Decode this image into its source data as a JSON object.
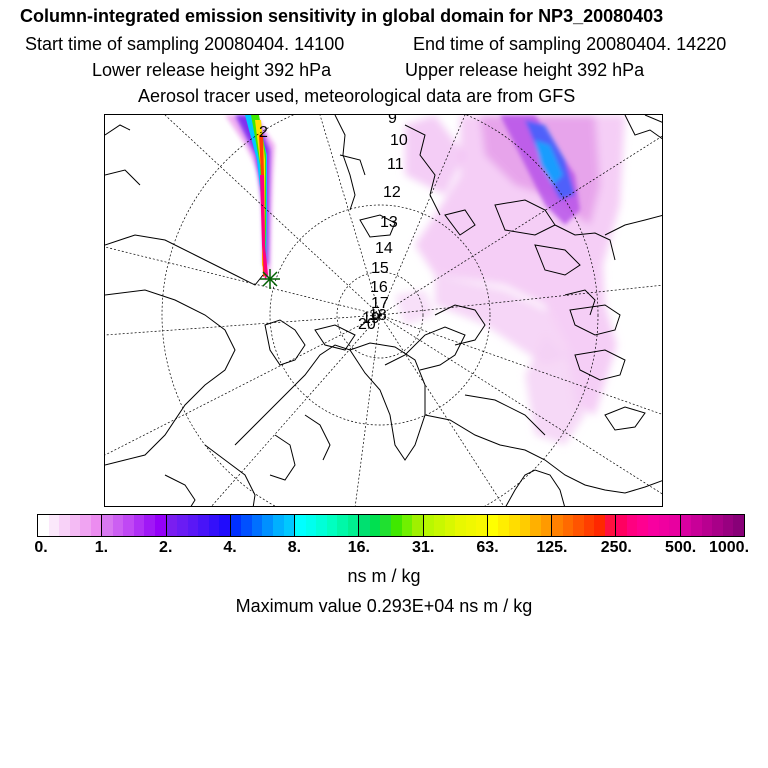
{
  "header": {
    "title": "Column-integrated emission sensitivity in global domain for NP3_20080403",
    "start_time": "Start time of sampling 20080404. 14100",
    "end_time": "End time of sampling 20080404. 14220",
    "lower_height": "Lower release height  392 hPa",
    "upper_height": "Upper release height  392 hPa",
    "tracer_info": "Aerosol tracer used, meteorological data are from GFS"
  },
  "trajectory_labels": [
    "2",
    "9",
    "10",
    "11",
    "12",
    "13",
    "14",
    "15",
    "16",
    "17",
    "18",
    "19",
    "20"
  ],
  "colorbar": {
    "ticks": [
      "0.",
      "1.",
      "2.",
      "4.",
      "8.",
      "16.",
      "31.",
      "63.",
      "125.",
      "250.",
      "500.",
      "1000."
    ],
    "groups": [
      [
        "#ffffff",
        "#fbe8fb",
        "#f8d2f8",
        "#f4bbf4",
        "#f0a4f2",
        "#ec8cf0"
      ],
      [
        "#d878f0",
        "#cc5ff2",
        "#c048f4",
        "#b030f5",
        "#a018f6",
        "#9400f8"
      ],
      [
        "#7a1ef0",
        "#6a1cf4",
        "#5a18f6",
        "#4814f8",
        "#3410fa",
        "#200cfc"
      ],
      [
        "#0030ff",
        "#0050ff",
        "#0070ff",
        "#0090ff",
        "#00b0ff",
        "#00c8ff"
      ],
      [
        "#00ffff",
        "#00ffee",
        "#00ffd8",
        "#00ffc0",
        "#00f8a8",
        "#00f090"
      ],
      [
        "#00e070",
        "#00e050",
        "#20e030",
        "#40e800",
        "#70f000",
        "#a0f000"
      ],
      [
        "#b8f800",
        "#c8f800",
        "#d8f800",
        "#e8f800",
        "#f0f800",
        "#f8f800"
      ],
      [
        "#ffff00",
        "#ffee00",
        "#ffdd00",
        "#ffcc00",
        "#ffb000",
        "#ff9a00"
      ],
      [
        "#ff8000",
        "#ff6a00",
        "#ff5400",
        "#ff3e00",
        "#ff2800",
        "#ff1040"
      ],
      [
        "#ff0060",
        "#ff0080",
        "#ff0090",
        "#f800a0",
        "#f000a0",
        "#e800a0"
      ],
      [
        "#d800a0",
        "#c80098",
        "#b80090",
        "#a80088",
        "#980080",
        "#880078"
      ]
    ]
  },
  "units": "ns m / kg",
  "max_value": "Maximum value  0.293E+04 ns m / kg"
}
